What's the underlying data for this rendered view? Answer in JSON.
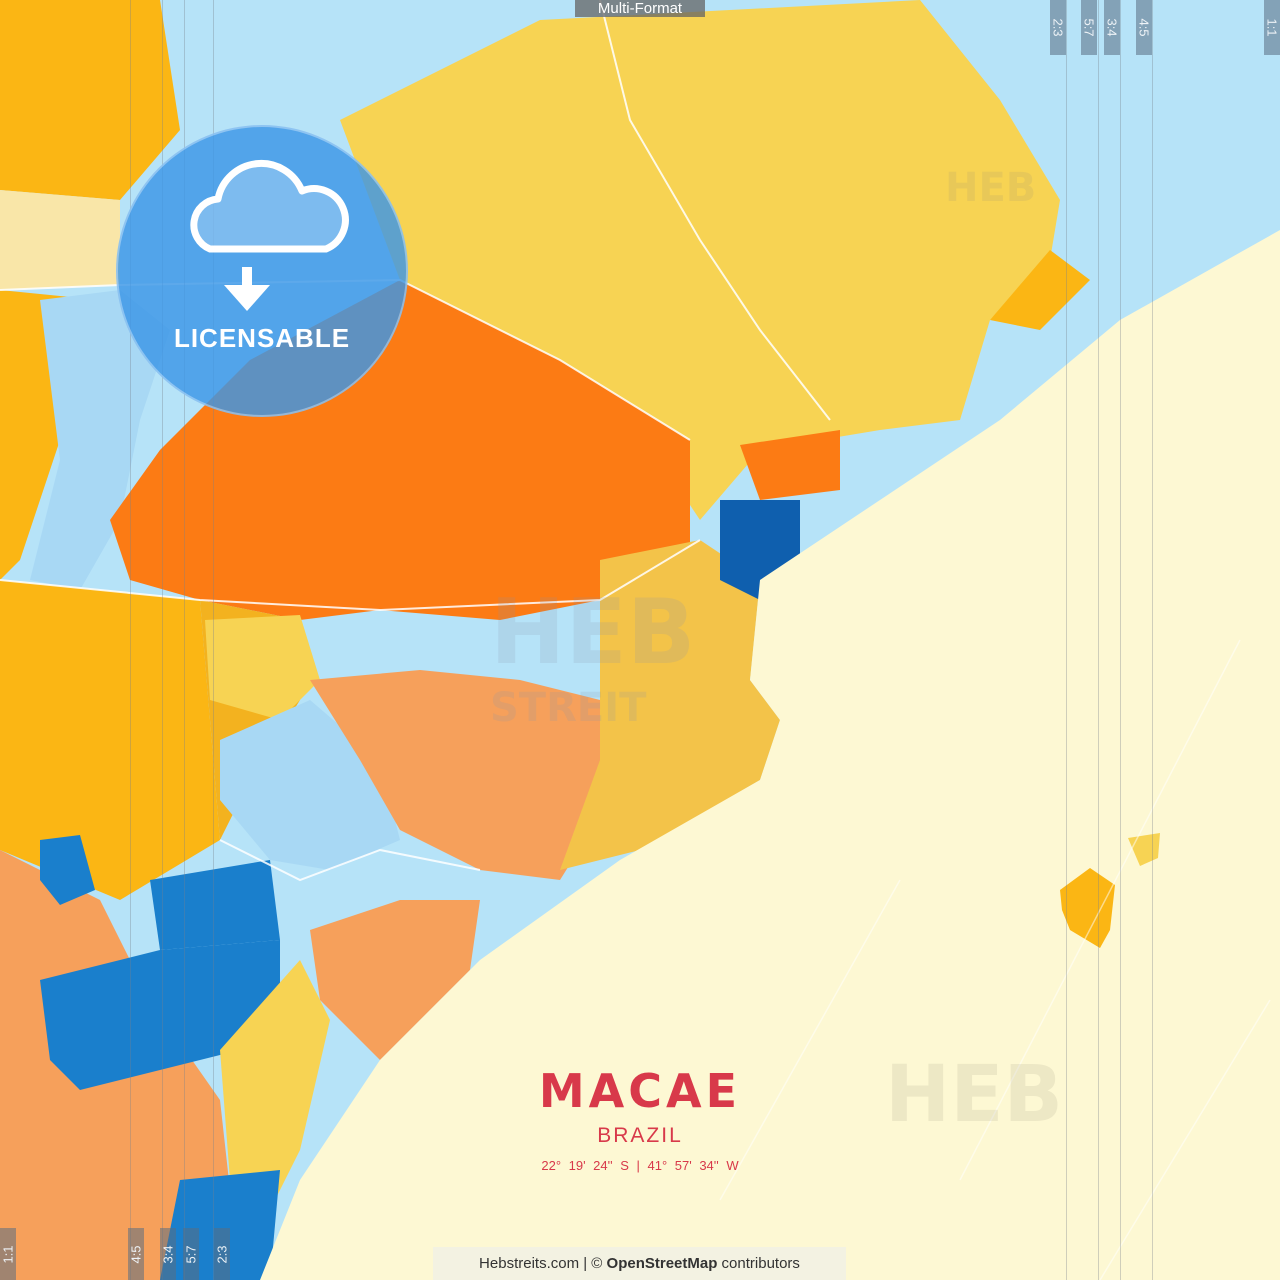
{
  "header": {
    "format_label": "Multi-Format"
  },
  "badge": {
    "icon": "cloud-download-icon",
    "label": "LICENSABLE"
  },
  "ratio_marks_top": [
    "2:3",
    "5:7",
    "3:4",
    "4:5",
    "1:1"
  ],
  "ratio_marks_bottom": [
    "1:1",
    "4:5",
    "3:4",
    "5:7",
    "2:3"
  ],
  "watermark": {
    "brand": "HEB",
    "sub": "STREIT"
  },
  "poster": {
    "city": "MACAE",
    "country": "BRAZIL",
    "coordinates": "22°  19'  24'' S  |  41°  57'  34'' W"
  },
  "attribution": {
    "site": "Hebstreits.com",
    "separator": " | © ",
    "osm": "OpenStreetMap",
    "suffix": " contributors"
  },
  "colors": {
    "water": "#b6e3f8",
    "sea": "#fdf8d3",
    "yellow": "#f7d353",
    "orange": "#fc7b14",
    "amber": "#fbb614",
    "salmon": "#f6a05b",
    "blue": "#1a7fcc",
    "dark_blue": "#0f5fae",
    "title_red": "#d8394a"
  }
}
